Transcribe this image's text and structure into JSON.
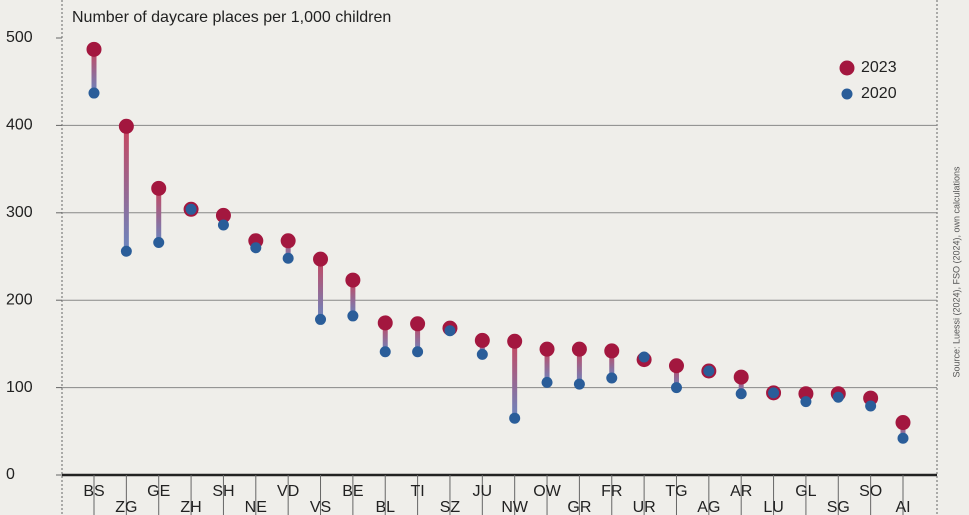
{
  "chart_data": {
    "type": "dumbbell",
    "title": "Number of daycare places per 1,000 children",
    "source": "Source: Luessi (2024), FSO (2024), own calculations",
    "categories": [
      "BS",
      "ZG",
      "GE",
      "ZH",
      "SH",
      "NE",
      "VD",
      "VS",
      "BE",
      "BL",
      "TI",
      "SZ",
      "JU",
      "NW",
      "OW",
      "GR",
      "FR",
      "UR",
      "TG",
      "AG",
      "AR",
      "LU",
      "GL",
      "SG",
      "SO",
      "AI"
    ],
    "series": [
      {
        "name": "2023",
        "color": "#a3173f",
        "values": [
          487,
          399,
          328,
          304,
          297,
          268,
          268,
          247,
          223,
          174,
          173,
          168,
          154,
          153,
          144,
          144,
          142,
          132,
          125,
          119,
          112,
          94,
          93,
          93,
          88,
          60
        ]
      },
      {
        "name": "2020",
        "color": "#2a5d99",
        "values": [
          437,
          256,
          266,
          304,
          286,
          260,
          248,
          178,
          182,
          141,
          141,
          165,
          138,
          65,
          106,
          104,
          111,
          135,
          100,
          119,
          93,
          94,
          84,
          89,
          79,
          42
        ]
      }
    ],
    "ylim": [
      0,
      500
    ],
    "yticks": [
      0,
      100,
      200,
      300,
      400,
      500
    ],
    "grid": true,
    "legend": "top-right"
  }
}
